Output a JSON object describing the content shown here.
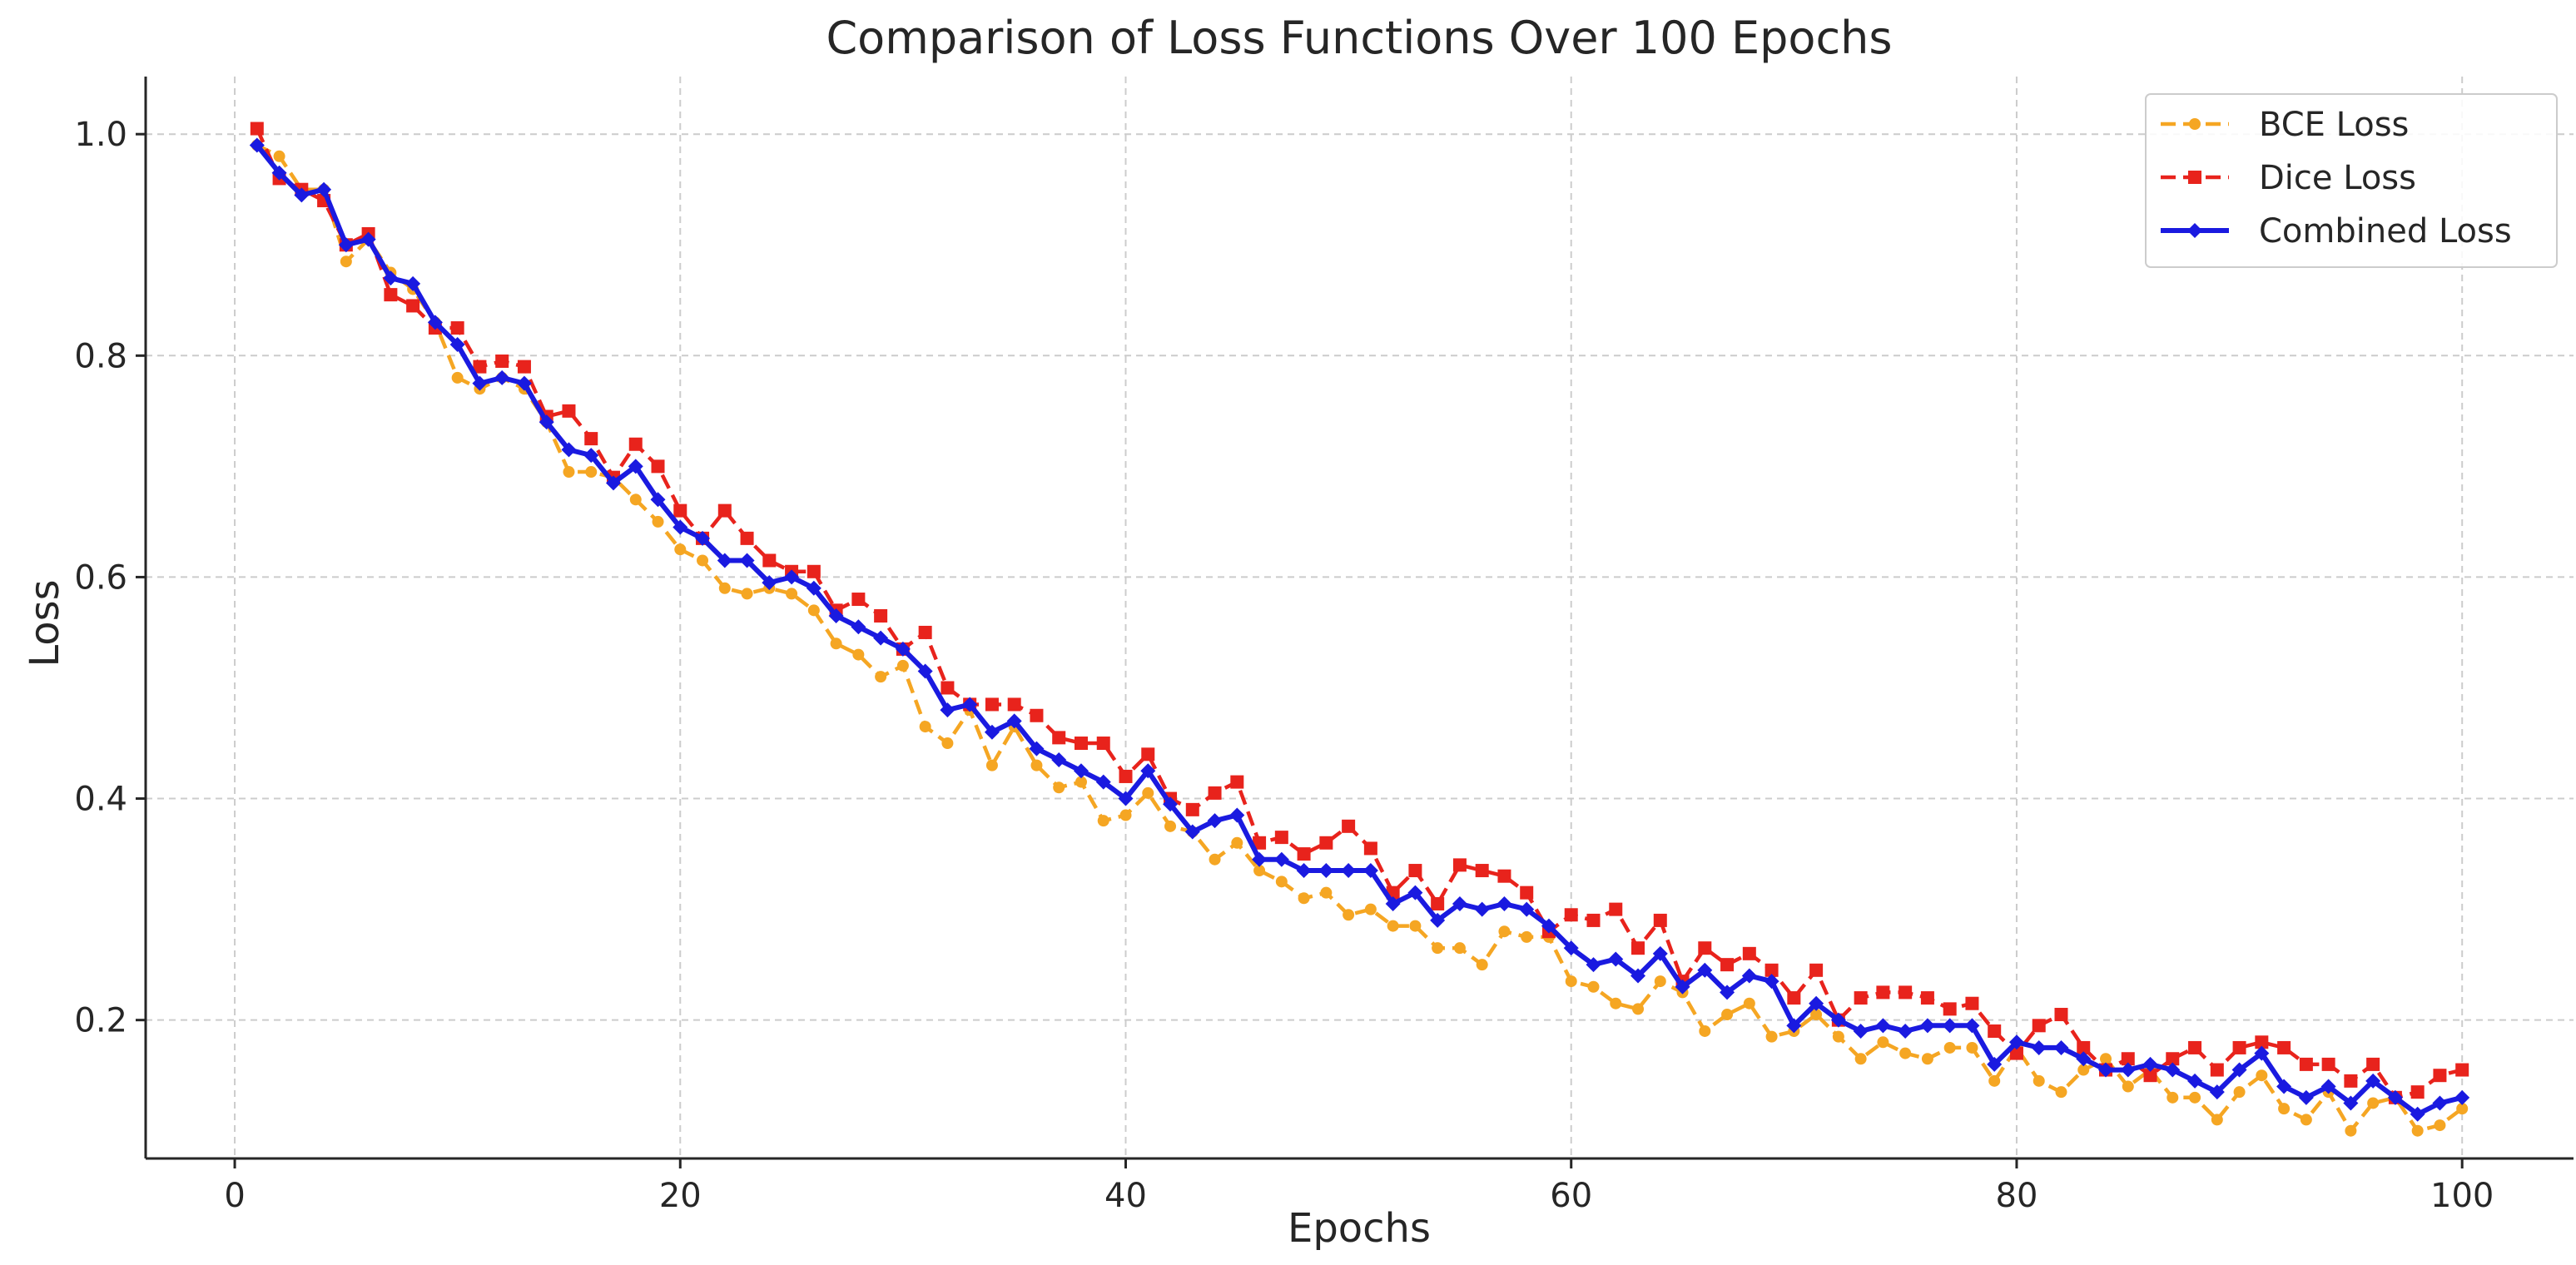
{
  "chart_data": {
    "type": "line",
    "title": "Comparison of Loss Functions Over 100 Epochs",
    "xlabel": "Epochs",
    "ylabel": "Loss",
    "xlim": [
      -4,
      105
    ],
    "ylim": [
      0.075,
      1.052
    ],
    "xticks": [
      0,
      20,
      40,
      60,
      80,
      100
    ],
    "xtick_labels": [
      "0",
      "20",
      "40",
      "60",
      "80",
      "100"
    ],
    "yticks": [
      0.2,
      0.4,
      0.6,
      0.8,
      1.0
    ],
    "ytick_labels": [
      "0.2",
      "0.4",
      "0.6",
      "0.8",
      "1.0"
    ],
    "grid": true,
    "legend_position": "top-right",
    "x": [
      1,
      2,
      3,
      4,
      5,
      6,
      7,
      8,
      9,
      10,
      11,
      12,
      13,
      14,
      15,
      16,
      17,
      18,
      19,
      20,
      21,
      22,
      23,
      24,
      25,
      26,
      27,
      28,
      29,
      30,
      31,
      32,
      33,
      34,
      35,
      36,
      37,
      38,
      39,
      40,
      41,
      42,
      43,
      44,
      45,
      46,
      47,
      48,
      49,
      50,
      51,
      52,
      53,
      54,
      55,
      56,
      57,
      58,
      59,
      60,
      61,
      62,
      63,
      64,
      65,
      66,
      67,
      68,
      69,
      70,
      71,
      72,
      73,
      74,
      75,
      76,
      77,
      78,
      79,
      80,
      81,
      82,
      83,
      84,
      85,
      86,
      87,
      88,
      89,
      90,
      91,
      92,
      93,
      94,
      95,
      96,
      97,
      98,
      99,
      100
    ],
    "series": [
      {
        "name": "BCE Loss",
        "color": "#f5a623",
        "linestyle": "dashed",
        "marker": "circle",
        "values": [
          0.99,
          0.98,
          0.95,
          0.95,
          0.885,
          0.905,
          0.875,
          0.86,
          0.83,
          0.78,
          0.77,
          0.78,
          0.77,
          0.74,
          0.695,
          0.695,
          0.69,
          0.67,
          0.65,
          0.625,
          0.615,
          0.59,
          0.585,
          0.59,
          0.585,
          0.57,
          0.54,
          0.53,
          0.51,
          0.52,
          0.465,
          0.45,
          0.48,
          0.43,
          0.465,
          0.43,
          0.41,
          0.415,
          0.38,
          0.385,
          0.405,
          0.375,
          0.37,
          0.345,
          0.36,
          0.335,
          0.325,
          0.31,
          0.315,
          0.295,
          0.3,
          0.285,
          0.285,
          0.265,
          0.265,
          0.25,
          0.28,
          0.275,
          0.275,
          0.235,
          0.23,
          0.215,
          0.21,
          0.235,
          0.225,
          0.19,
          0.205,
          0.215,
          0.185,
          0.19,
          0.205,
          0.185,
          0.165,
          0.18,
          0.17,
          0.165,
          0.175,
          0.175,
          0.145,
          0.175,
          0.145,
          0.135,
          0.155,
          0.165,
          0.14,
          0.155,
          0.13,
          0.13,
          0.11,
          0.135,
          0.15,
          0.12,
          0.11,
          0.135,
          0.1,
          0.125,
          0.13,
          0.1,
          0.105,
          0.12
        ]
      },
      {
        "name": "Dice Loss",
        "color": "#e8231c",
        "linestyle": "dashed",
        "marker": "square",
        "values": [
          1.005,
          0.96,
          0.95,
          0.94,
          0.9,
          0.91,
          0.855,
          0.845,
          0.825,
          0.825,
          0.79,
          0.795,
          0.79,
          0.745,
          0.75,
          0.725,
          0.69,
          0.72,
          0.7,
          0.66,
          0.635,
          0.66,
          0.635,
          0.615,
          0.605,
          0.605,
          0.57,
          0.58,
          0.565,
          0.535,
          0.55,
          0.5,
          0.485,
          0.485,
          0.485,
          0.475,
          0.455,
          0.45,
          0.45,
          0.42,
          0.44,
          0.4,
          0.39,
          0.405,
          0.415,
          0.36,
          0.365,
          0.35,
          0.36,
          0.375,
          0.355,
          0.315,
          0.335,
          0.305,
          0.34,
          0.335,
          0.33,
          0.315,
          0.28,
          0.295,
          0.29,
          0.3,
          0.265,
          0.29,
          0.235,
          0.265,
          0.25,
          0.26,
          0.245,
          0.22,
          0.245,
          0.2,
          0.22,
          0.225,
          0.225,
          0.22,
          0.21,
          0.215,
          0.19,
          0.17,
          0.195,
          0.205,
          0.175,
          0.155,
          0.165,
          0.15,
          0.165,
          0.175,
          0.155,
          0.175,
          0.18,
          0.175,
          0.16,
          0.16,
          0.145,
          0.16,
          0.13,
          0.135,
          0.15,
          0.155
        ]
      },
      {
        "name": "Combined Loss",
        "color": "#1a1ae0",
        "linestyle": "solid",
        "marker": "diamond",
        "values": [
          0.99,
          0.965,
          0.945,
          0.95,
          0.9,
          0.905,
          0.87,
          0.865,
          0.83,
          0.81,
          0.775,
          0.78,
          0.775,
          0.74,
          0.715,
          0.71,
          0.685,
          0.7,
          0.67,
          0.645,
          0.635,
          0.615,
          0.615,
          0.595,
          0.6,
          0.59,
          0.565,
          0.555,
          0.545,
          0.535,
          0.515,
          0.48,
          0.485,
          0.46,
          0.47,
          0.445,
          0.435,
          0.425,
          0.415,
          0.4,
          0.425,
          0.395,
          0.37,
          0.38,
          0.385,
          0.345,
          0.345,
          0.335,
          0.335,
          0.335,
          0.335,
          0.305,
          0.315,
          0.29,
          0.305,
          0.3,
          0.305,
          0.3,
          0.285,
          0.265,
          0.25,
          0.255,
          0.24,
          0.26,
          0.23,
          0.245,
          0.225,
          0.24,
          0.235,
          0.195,
          0.215,
          0.2,
          0.19,
          0.195,
          0.19,
          0.195,
          0.195,
          0.195,
          0.16,
          0.18,
          0.175,
          0.175,
          0.165,
          0.155,
          0.155,
          0.16,
          0.155,
          0.145,
          0.135,
          0.155,
          0.17,
          0.14,
          0.13,
          0.14,
          0.125,
          0.145,
          0.13,
          0.115,
          0.125,
          0.13
        ]
      }
    ]
  }
}
